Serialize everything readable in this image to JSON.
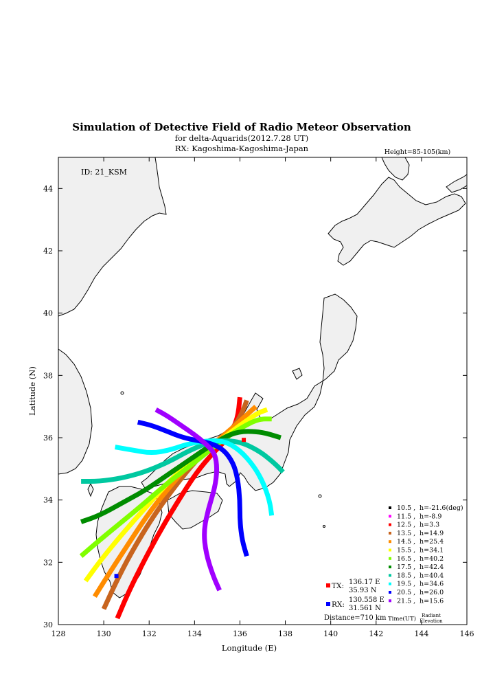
{
  "title": "Simulation of Detective Field of Radio Meteor Observation",
  "subtitle": "for delta-Aquarids(2012.7.28 UT)",
  "rx_line": "RX: Kagoshima-Kagoshima-Japan",
  "height_label": "Height=85-105(km)",
  "id_label": "ID: 21_KSM",
  "xlabel": "Longitude (E)",
  "ylabel": "Latitude (N)",
  "x_ticks": [
    "128",
    "130",
    "132",
    "134",
    "136",
    "138",
    "140",
    "142",
    "144",
    "146"
  ],
  "y_ticks": [
    "30",
    "32",
    "34",
    "36",
    "38",
    "40",
    "42",
    "44"
  ],
  "legend": [
    {
      "time": "10.5",
      "value": "h=-21.6(deg)",
      "color": "#000000"
    },
    {
      "time": "11.5",
      "value": "h=-8.9",
      "color": "#ff00ff"
    },
    {
      "time": "12.5",
      "value": "h=3.3",
      "color": "#ff0000"
    },
    {
      "time": "13.5",
      "value": "h=14.9",
      "color": "#c8641e"
    },
    {
      "time": "14.5",
      "value": "h=25.4",
      "color": "#ff8c00"
    },
    {
      "time": "15.5",
      "value": "h=34.1",
      "color": "#ffff00"
    },
    {
      "time": "16.5",
      "value": "h=40.2",
      "color": "#80ff00"
    },
    {
      "time": "17.5",
      "value": "h=42.4",
      "color": "#008c00"
    },
    {
      "time": "18.5",
      "value": "h=40.4",
      "color": "#00c8a0"
    },
    {
      "time": "19.5",
      "value": "h=34.6",
      "color": "#00ffff"
    },
    {
      "time": "20.5",
      "value": "h=26.0",
      "color": "#0000ff"
    },
    {
      "time": "21.5",
      "value": "h=15.6",
      "color": "#a000ff"
    }
  ],
  "legend_footer": {
    "time": "Time(UT)",
    "radiant_1": "Radiant",
    "radiant_2": "Elevation"
  },
  "tx": {
    "label": "TX:",
    "lon_text": "136.17 E",
    "lat_text": "35.93 N",
    "lon": 136.17,
    "lat": 35.93,
    "color": "#ff0000"
  },
  "rx": {
    "label": "RX:",
    "lon_text": "130.558 E",
    "lat_text": "31.561 N",
    "lon": 130.558,
    "lat": 31.561,
    "color": "#0000ff"
  },
  "distance": "Distance=710 km",
  "colors": {
    "land": "#f0f0f0",
    "coast": "#000000"
  },
  "chart_data": {
    "type": "scatter",
    "xlim": [
      128,
      146
    ],
    "ylim": [
      30,
      45
    ],
    "grid": false,
    "tracks": [
      {
        "time": "12.5",
        "points": [
          [
            130.6,
            30.2
          ],
          [
            131.0,
            30.9
          ],
          [
            131.6,
            31.8
          ],
          [
            132.4,
            32.9
          ],
          [
            133.3,
            34.0
          ],
          [
            134.1,
            34.9
          ],
          [
            134.8,
            35.5
          ],
          [
            135.5,
            36.0
          ],
          [
            135.9,
            36.6
          ],
          [
            136.0,
            37.3
          ]
        ]
      },
      {
        "time": "13.5",
        "points": [
          [
            130.0,
            30.5
          ],
          [
            130.5,
            31.3
          ],
          [
            131.2,
            32.3
          ],
          [
            132.2,
            33.5
          ],
          [
            133.2,
            34.5
          ],
          [
            134.1,
            35.3
          ],
          [
            134.9,
            35.8
          ],
          [
            135.7,
            36.3
          ],
          [
            136.1,
            36.8
          ],
          [
            136.3,
            37.2
          ]
        ]
      },
      {
        "time": "14.5",
        "points": [
          [
            129.6,
            30.9
          ],
          [
            130.2,
            31.6
          ],
          [
            131.0,
            32.5
          ],
          [
            132.0,
            33.6
          ],
          [
            133.1,
            34.6
          ],
          [
            134.1,
            35.4
          ],
          [
            135.0,
            35.9
          ],
          [
            135.8,
            36.4
          ],
          [
            136.4,
            36.8
          ],
          [
            136.7,
            37.0
          ]
        ]
      },
      {
        "time": "15.5",
        "points": [
          [
            129.2,
            31.4
          ],
          [
            129.9,
            32.1
          ],
          [
            130.8,
            32.9
          ],
          [
            131.9,
            33.8
          ],
          [
            133.0,
            34.7
          ],
          [
            134.1,
            35.4
          ],
          [
            135.1,
            35.9
          ],
          [
            136.0,
            36.4
          ],
          [
            136.8,
            36.8
          ],
          [
            137.2,
            36.9
          ]
        ]
      },
      {
        "time": "16.5",
        "points": [
          [
            129.0,
            32.2
          ],
          [
            129.8,
            32.7
          ],
          [
            130.8,
            33.3
          ],
          [
            131.8,
            33.9
          ],
          [
            132.9,
            34.6
          ],
          [
            134.0,
            35.2
          ],
          [
            135.0,
            35.8
          ],
          [
            136.0,
            36.3
          ],
          [
            136.8,
            36.6
          ],
          [
            137.4,
            36.6
          ]
        ]
      },
      {
        "time": "17.5",
        "points": [
          [
            129.0,
            33.3
          ],
          [
            129.8,
            33.5
          ],
          [
            130.8,
            33.9
          ],
          [
            131.8,
            34.3
          ],
          [
            132.8,
            34.8
          ],
          [
            133.8,
            35.3
          ],
          [
            134.8,
            35.8
          ],
          [
            135.8,
            36.2
          ],
          [
            136.9,
            36.2
          ],
          [
            137.8,
            36.0
          ]
        ]
      },
      {
        "time": "18.5",
        "points": [
          [
            129.0,
            34.6
          ],
          [
            129.8,
            34.6
          ],
          [
            130.8,
            34.7
          ],
          [
            131.8,
            34.9
          ],
          [
            132.8,
            35.2
          ],
          [
            133.8,
            35.6
          ],
          [
            134.8,
            35.9
          ],
          [
            135.9,
            35.9
          ],
          [
            136.8,
            35.6
          ],
          [
            137.5,
            35.2
          ],
          [
            137.9,
            34.9
          ]
        ]
      },
      {
        "time": "19.5",
        "points": [
          [
            130.5,
            35.7
          ],
          [
            131.3,
            35.6
          ],
          [
            132.1,
            35.5
          ],
          [
            132.9,
            35.6
          ],
          [
            133.7,
            35.8
          ],
          [
            134.5,
            35.9
          ],
          [
            135.3,
            35.9
          ],
          [
            136.0,
            35.6
          ],
          [
            136.6,
            35.1
          ],
          [
            137.0,
            34.6
          ],
          [
            137.3,
            34.0
          ],
          [
            137.4,
            33.5
          ]
        ]
      },
      {
        "time": "20.5",
        "points": [
          [
            131.5,
            36.5
          ],
          [
            132.1,
            36.4
          ],
          [
            132.8,
            36.2
          ],
          [
            133.5,
            36.0
          ],
          [
            134.2,
            35.9
          ],
          [
            134.8,
            35.8
          ],
          [
            135.3,
            35.6
          ],
          [
            135.7,
            35.2
          ],
          [
            135.9,
            34.7
          ],
          [
            136.0,
            34.0
          ],
          [
            136.0,
            33.3
          ],
          [
            136.1,
            32.7
          ],
          [
            136.3,
            32.2
          ]
        ]
      },
      {
        "time": "21.5",
        "points": [
          [
            132.3,
            36.9
          ],
          [
            132.8,
            36.7
          ],
          [
            133.4,
            36.4
          ],
          [
            134.0,
            36.1
          ],
          [
            134.5,
            35.8
          ],
          [
            134.9,
            35.5
          ],
          [
            135.0,
            35.0
          ],
          [
            134.9,
            34.4
          ],
          [
            134.6,
            33.7
          ],
          [
            134.4,
            33.0
          ],
          [
            134.5,
            32.3
          ],
          [
            134.8,
            31.6
          ],
          [
            135.1,
            31.1
          ]
        ]
      }
    ]
  }
}
